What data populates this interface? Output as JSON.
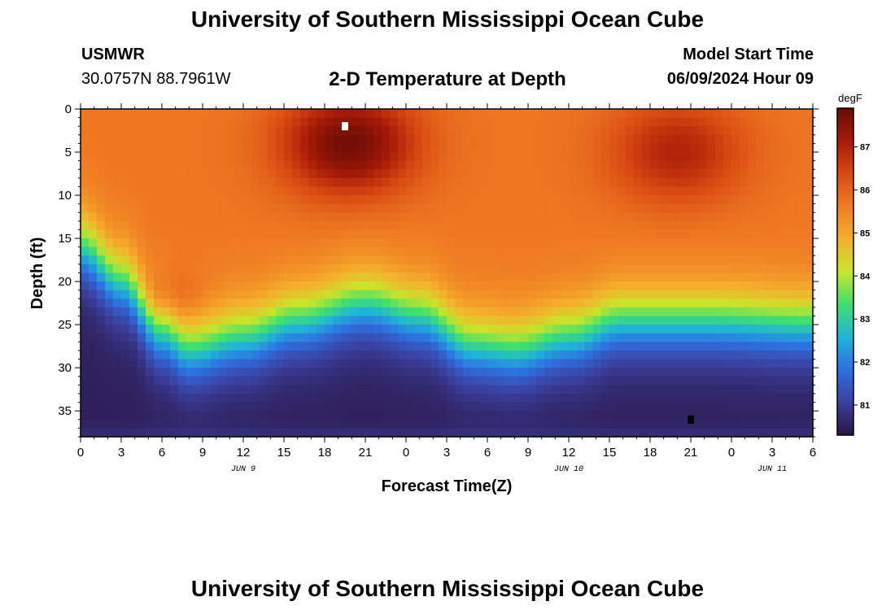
{
  "header": {
    "title": "University of Southern Mississippi Ocean Cube",
    "station": "USMWR",
    "coordinates": "30.0757N  88.7961W",
    "plot_title": "2-D Temperature at Depth",
    "model_start_label": "Model Start Time",
    "model_start_value": "06/09/2024 Hour 09"
  },
  "footer": {
    "title": "University of Southern Mississippi Ocean Cube"
  },
  "chart_data": {
    "type": "heatmap",
    "title": "2-D Temperature at Depth",
    "xlabel": "Forecast Time(Z)",
    "ylabel": "Depth (ft)",
    "x_range_hours": [
      0,
      54
    ],
    "y_range_ft": [
      0,
      38
    ],
    "y_reversed": true,
    "x_ticks": [
      {
        "hour": 0,
        "label": "0"
      },
      {
        "hour": 3,
        "label": "3"
      },
      {
        "hour": 6,
        "label": "6"
      },
      {
        "hour": 9,
        "label": "9"
      },
      {
        "hour": 12,
        "label": "12"
      },
      {
        "hour": 15,
        "label": "15"
      },
      {
        "hour": 18,
        "label": "18"
      },
      {
        "hour": 21,
        "label": "21"
      },
      {
        "hour": 24,
        "label": "0"
      },
      {
        "hour": 27,
        "label": "3"
      },
      {
        "hour": 30,
        "label": "6"
      },
      {
        "hour": 33,
        "label": "9"
      },
      {
        "hour": 36,
        "label": "12"
      },
      {
        "hour": 39,
        "label": "15"
      },
      {
        "hour": 42,
        "label": "18"
      },
      {
        "hour": 45,
        "label": "21"
      },
      {
        "hour": 48,
        "label": "0"
      },
      {
        "hour": 51,
        "label": "3"
      },
      {
        "hour": 54,
        "label": "6"
      }
    ],
    "date_labels": [
      {
        "hour": 12,
        "label": "JUN 9"
      },
      {
        "hour": 36,
        "label": "JUN 10"
      },
      {
        "hour": 51,
        "label": "JUN 11"
      }
    ],
    "y_ticks": [
      0,
      5,
      10,
      15,
      20,
      25,
      30,
      35
    ],
    "colorbar": {
      "unit": "degF",
      "range": [
        80.3,
        87.9
      ],
      "ticks": [
        81,
        82,
        83,
        84,
        85,
        86,
        87
      ],
      "colors": [
        "#2b1543",
        "#3b3f9e",
        "#2f6fe0",
        "#1fb4d8",
        "#3ee06e",
        "#c8e52a",
        "#f5b02c",
        "#f07c23",
        "#d94a12",
        "#a61a08",
        "#6a0c06"
      ]
    },
    "series": {
      "thermocline_depth_ft": [
        {
          "hour": 0,
          "depth": 16
        },
        {
          "hour": 3,
          "depth": 20
        },
        {
          "hour": 6,
          "depth": 26
        },
        {
          "hour": 8,
          "depth": 28
        },
        {
          "hour": 12,
          "depth": 26.5
        },
        {
          "hour": 16,
          "depth": 24.5
        },
        {
          "hour": 21,
          "depth": 22.5
        },
        {
          "hour": 25,
          "depth": 24
        },
        {
          "hour": 29,
          "depth": 27.5
        },
        {
          "hour": 32,
          "depth": 28
        },
        {
          "hour": 36,
          "depth": 26.5
        },
        {
          "hour": 40,
          "depth": 24.5
        },
        {
          "hour": 46,
          "depth": 24.5
        },
        {
          "hour": 54,
          "depth": 25
        }
      ],
      "warm_cores": [
        {
          "hour": 19.8,
          "depth": 4,
          "temp": 87.8
        },
        {
          "hour": 44,
          "depth": 5,
          "temp": 87.0
        },
        {
          "hour": 6.5,
          "depth": 22,
          "temp": 86.2
        }
      ]
    },
    "markers": [
      {
        "name": "max-temp-marker",
        "hour": 19.5,
        "depth": 2,
        "color": "#ffffff"
      },
      {
        "name": "min-temp-marker",
        "hour": 45,
        "depth": 36,
        "color": "#000000"
      }
    ]
  }
}
